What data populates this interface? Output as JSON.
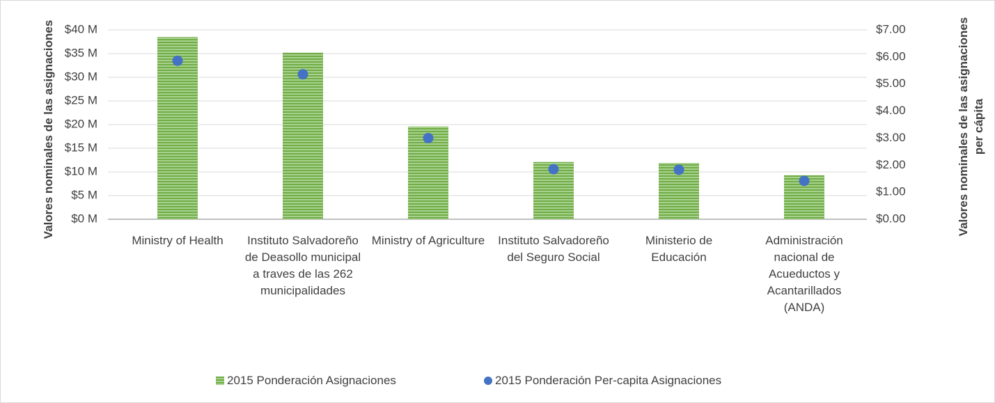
{
  "chart_data": {
    "type": "bar",
    "categories": [
      "Ministry of Health",
      "Instituto Salvadoreño de Deasollo municipal a traves de las 262 municipalidades",
      "Ministry of Agriculture",
      "Instituto Salvadoreño del Seguro Social",
      "Ministerio de Educación",
      "Administración nacional de Acueductos y Acantarillados (ANDA)"
    ],
    "series": [
      {
        "name": "2015 Ponderación Asignaciones",
        "type": "bar",
        "color": "#70ad47",
        "values": [
          38.5,
          35.2,
          19.6,
          12.1,
          11.9,
          9.3
        ]
      },
      {
        "name": "2015 Ponderación Per-capita Asignaciones",
        "type": "scatter",
        "axis": "y2",
        "color": "#4472c4",
        "values": [
          5.86,
          5.36,
          3.0,
          1.85,
          1.83,
          1.42
        ]
      }
    ],
    "ylabel": "Valores nominales de las asignaciones",
    "y2label": "Valores  nominales de las asignaciones per cápita",
    "ylim": [
      0,
      40
    ],
    "yticks": [
      {
        "value": 0,
        "label": "$0 M"
      },
      {
        "value": 5,
        "label": "$5 M"
      },
      {
        "value": 10,
        "label": "$10 M"
      },
      {
        "value": 15,
        "label": "$15 M"
      },
      {
        "value": 20,
        "label": "$20 M"
      },
      {
        "value": 25,
        "label": "$25 M"
      },
      {
        "value": 30,
        "label": "$30 M"
      },
      {
        "value": 35,
        "label": "$35 M"
      },
      {
        "value": 40,
        "label": "$40 M"
      }
    ],
    "y2lim": [
      0,
      7
    ],
    "y2ticks": [
      {
        "value": 0,
        "label": "$0.00"
      },
      {
        "value": 1,
        "label": "$1.00"
      },
      {
        "value": 2,
        "label": "$2.00"
      },
      {
        "value": 3,
        "label": "$3.00"
      },
      {
        "value": 4,
        "label": "$4.00"
      },
      {
        "value": 5,
        "label": "$5.00"
      },
      {
        "value": 6,
        "label": "$6.00"
      },
      {
        "value": 7,
        "label": "$7.00"
      }
    ],
    "grid": true,
    "legend": "bottom"
  }
}
